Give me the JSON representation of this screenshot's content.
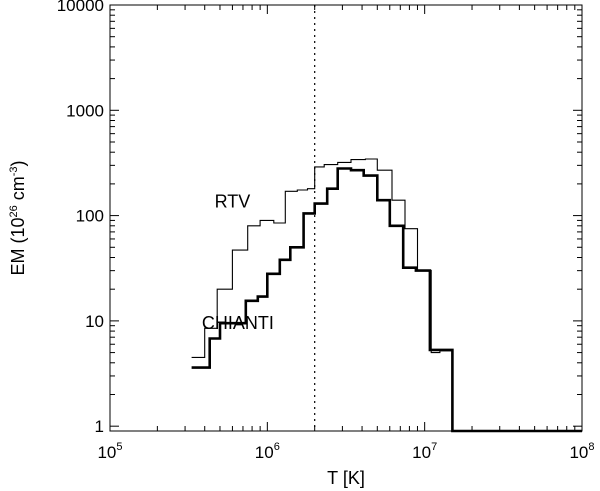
{
  "chart_data": {
    "type": "line",
    "step": true,
    "xlabel": "T [K]",
    "ylabel": {
      "prefix": "EM (10",
      "exp": "26",
      "mid": " cm",
      "exp2": "-3",
      "suffix": ")"
    },
    "xscale": "log",
    "yscale": "log",
    "xlim": [
      100000,
      100000000
    ],
    "ylim": [
      0.9,
      10000
    ],
    "x_ticks": [
      {
        "value": 100000,
        "base": "10",
        "exp": "5"
      },
      {
        "value": 1000000,
        "base": "10",
        "exp": "6"
      },
      {
        "value": 10000000,
        "base": "10",
        "exp": "7"
      },
      {
        "value": 100000000,
        "base": "10",
        "exp": "8"
      }
    ],
    "y_ticks": [
      {
        "value": 1,
        "label": "1"
      },
      {
        "value": 10,
        "label": "10"
      },
      {
        "value": 100,
        "label": "100"
      },
      {
        "value": 1000,
        "label": "1000"
      },
      {
        "value": 10000,
        "label": "10000"
      }
    ],
    "reference_line": {
      "x": 2000000,
      "style": "dotted"
    },
    "series": [
      {
        "name": "RTV",
        "line_weight": "thin",
        "x": [
          330000,
          400000,
          480000,
          600000,
          750000,
          900000,
          1100000,
          1300000,
          1550000,
          1800000,
          2000000,
          2300000,
          2800000,
          3400000,
          4200000,
          5000000,
          6200000,
          7500000,
          9000000,
          11000000,
          12500000,
          15000000,
          100000000
        ],
        "y": [
          4.5,
          8.5,
          20,
          47,
          80,
          90,
          85,
          170,
          175,
          180,
          290,
          305,
          320,
          340,
          345,
          270,
          140,
          75,
          30,
          5,
          5.2,
          0.9,
          0.9
        ]
      },
      {
        "name": "CHIANTI",
        "line_weight": "thick",
        "x": [
          330000,
          350000,
          430000,
          500000,
          600000,
          730000,
          870000,
          1000000,
          1200000,
          1400000,
          1700000,
          2000000,
          2400000,
          2800000,
          3400000,
          4100000,
          5000000,
          6000000,
          7300000,
          8800000,
          10800000,
          13000000,
          15000000,
          100000000
        ],
        "y": [
          3.6,
          3.6,
          6.8,
          9.5,
          9.5,
          15.5,
          17,
          28,
          38,
          50,
          105,
          130,
          180,
          280,
          270,
          240,
          140,
          80,
          32,
          30,
          5.3,
          5.3,
          0.9,
          0.9
        ]
      }
    ],
    "annotations": [
      {
        "text": "RTV",
        "x": 600000,
        "y": 120
      },
      {
        "text": "CHIANTI",
        "x": 650000,
        "y": 8.4
      }
    ]
  }
}
